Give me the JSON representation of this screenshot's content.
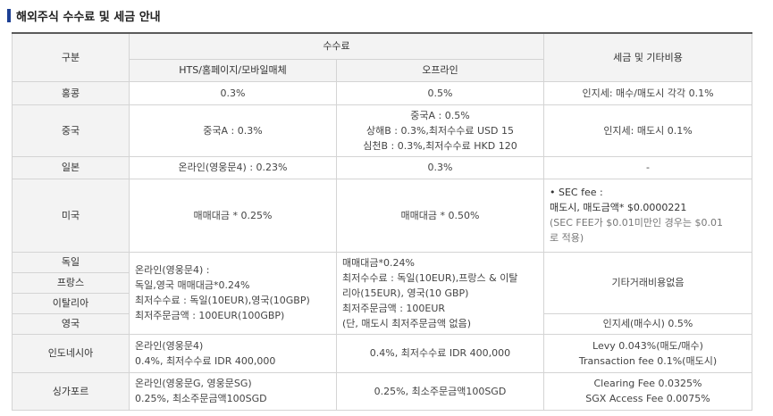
{
  "title": "해외주식 수수료 및 세금 안내",
  "header": {
    "category": "구분",
    "fees": "수수료",
    "online": "HTS/홈페이지/모바일매체",
    "offline": "오프라인",
    "tax": "세금 및 기타비용"
  },
  "rows": {
    "hk": {
      "name": "홍콩",
      "online": "0.3%",
      "offline": "0.5%",
      "tax": "인지세: 매수/매도시 각각 0.1%"
    },
    "cn": {
      "name": "중국",
      "online": "중국A : 0.3%",
      "offline": [
        "중국A : 0.5%",
        "상해B : 0.3%,최저수수료 USD 15",
        "심천B : 0.3%,최저수수료 HKD 120"
      ],
      "tax": "인지세: 매도시 0.1%"
    },
    "jp": {
      "name": "일본",
      "online": "온라인(영웅문4) : 0.23%",
      "offline": "0.3%",
      "tax": "-"
    },
    "us": {
      "name": "미국",
      "online": "매매대금 * 0.25%",
      "offline": "매매대금 * 0.50%",
      "tax_lines": [
        "• SEC fee :",
        "매도시, 매도금액* $0.0000221",
        "(SEC FEE가 $0.01미만인 경우는 $0.01",
        "로 적용)"
      ]
    },
    "eu": {
      "names": [
        "독일",
        "프랑스",
        "이탈리아",
        "영국"
      ],
      "online": [
        "온라인(영웅문4) :",
        "독일,영국 매매대금*0.24%",
        "최저수수료 : 독일(10EUR),영국(10GBP)",
        "최저주문금액 : 100EUR(100GBP)"
      ],
      "offline": [
        "매매대금*0.24%",
        "최저수수료 : 독일(10EUR),프랑스 & 이탈",
        "리아(15EUR), 영국(10 GBP)",
        "최저주문금액 : 100EUR",
        "(단, 매도시 최저주문금액 없음)"
      ],
      "tax_other": "기타거래비용없음",
      "tax_uk": "인지세(매수시) 0.5%"
    },
    "id": {
      "name": "인도네시아",
      "online": [
        "온라인(영웅문4)",
        "0.4%, 최저수수료 IDR 400,000"
      ],
      "offline": "0.4%, 최저수수료 IDR 400,000",
      "tax": [
        "Levy 0.043%(매도/매수)",
        "Transaction fee 0.1%(매도시)"
      ]
    },
    "sg": {
      "name": "싱가포르",
      "online": [
        "온라인(영웅문G, 영웅문SG)",
        "0.25%, 최소주문금액100SGD"
      ],
      "offline": "0.25%, 최소주문금액100SGD",
      "tax": [
        "Clearing Fee 0.0325%",
        "SGX Access Fee 0.0075%"
      ]
    }
  }
}
